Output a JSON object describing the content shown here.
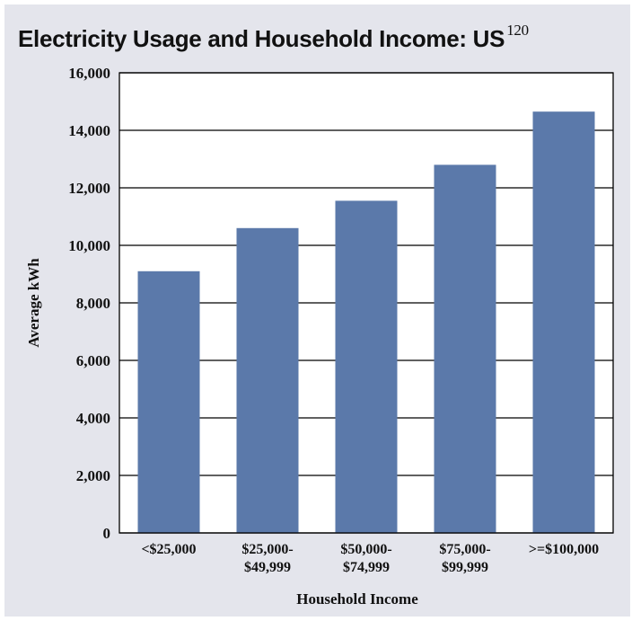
{
  "chart_data": {
    "type": "bar",
    "title": "Electricity Usage and Household Income: US",
    "title_superscript": "120",
    "categories": [
      [
        "<$25,000"
      ],
      [
        "$25,000-",
        "$49,999"
      ],
      [
        "$50,000-",
        "$74,999"
      ],
      [
        "$75,000-",
        "$99,999"
      ],
      [
        ">=$100,000"
      ]
    ],
    "values": [
      9100,
      10600,
      11550,
      12800,
      14650
    ],
    "xlabel": "Household Income",
    "ylabel": "Average kWh",
    "ylim": [
      0,
      16000
    ],
    "yticks": [
      0,
      2000,
      4000,
      6000,
      8000,
      10000,
      12000,
      14000,
      16000
    ],
    "ytick_labels": [
      "0",
      "2,000",
      "4,000",
      "6,000",
      "8,000",
      "10,000",
      "12,000",
      "14,000",
      "16,000"
    ],
    "bar_color": "#5b79aa",
    "grid": "horizontal"
  }
}
